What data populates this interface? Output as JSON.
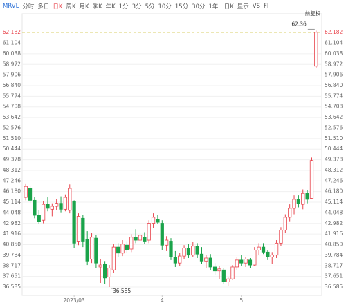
{
  "toolbar": [
    "MRVL",
    "分时",
    "多日",
    "日K",
    "周K",
    "月K",
    "季K",
    "年K",
    "1分",
    "3分",
    "5分",
    "10分",
    "15分",
    "30分",
    "1年 : 日K",
    "显示",
    "VS",
    "FI"
  ],
  "chart_data": {
    "type": "candlestick",
    "adjust_label": "前复权",
    "up_color": "#e8434b",
    "down_color": "#1aa34a",
    "ylim": [
      36.585,
      62.182
    ],
    "yticks": [
      62.182,
      61.104,
      60.038,
      58.972,
      57.906,
      {
        "value": 56.84,
        "label": "56.840"
      },
      55.774,
      54.708,
      53.642,
      52.576,
      {
        "value": 51.51,
        "label": "51.510"
      },
      50.444,
      49.378,
      48.312,
      47.246,
      {
        "value": 46.18,
        "label": "46.180"
      },
      45.114,
      44.048,
      42.982,
      41.916,
      {
        "value": 40.85,
        "label": "40.850"
      },
      39.784,
      38.717,
      37.651,
      36.585
    ],
    "categories": [
      null,
      null,
      null,
      null,
      null,
      null,
      null,
      null,
      null,
      null,
      null,
      "2023/03",
      null,
      null,
      null,
      null,
      null,
      null,
      null,
      null,
      null,
      null,
      null,
      null,
      null,
      null,
      null,
      null,
      null,
      null,
      null,
      "4",
      null,
      null,
      null,
      null,
      null,
      null,
      null,
      null,
      null,
      null,
      null,
      null,
      null,
      null,
      null,
      null,
      null,
      "5",
      null,
      null,
      null,
      null,
      null,
      null,
      null,
      null,
      null,
      null,
      null,
      null,
      null,
      null,
      null,
      null,
      null
    ],
    "open": [
      45.6,
      46.5,
      45.3,
      43.8,
      43.3,
      44.9,
      44.4,
      44.7,
      45.0,
      44.4,
      44.3,
      45.2,
      41.2,
      43.5,
      41.4,
      39.4,
      41.5,
      38.6,
      38.9,
      37.6,
      38.3,
      40.6,
      40.0,
      40.8,
      40.4,
      41.6,
      41.3,
      41.6,
      41.3,
      43.0,
      43.4,
      43.0,
      40.8,
      41.2,
      39.6,
      39.0,
      39.7,
      40.5,
      39.8,
      40.7,
      39.9,
      39.2,
      39.5,
      38.6,
      38.2,
      38.3,
      37.1,
      37.4,
      38.6,
      39.3,
      39.0,
      39.3,
      38.8,
      40.3,
      40.6,
      40.1,
      39.6,
      39.8,
      41.0,
      42.3,
      43.6,
      44.5,
      45.4,
      44.9,
      46.0,
      45.5,
      58.8
    ],
    "high": [
      47.0,
      46.8,
      45.6,
      44.3,
      45.2,
      45.6,
      45.0,
      45.4,
      45.7,
      45.9,
      46.9,
      45.3,
      44.0,
      43.8,
      42.2,
      42.0,
      41.8,
      39.4,
      39.2,
      38.8,
      40.9,
      41.0,
      41.3,
      41.2,
      41.9,
      42.4,
      42.0,
      42.1,
      43.3,
      44.0,
      43.8,
      43.3,
      41.7,
      41.5,
      40.2,
      40.0,
      40.8,
      40.9,
      41.1,
      41.0,
      40.6,
      39.8,
      39.9,
      39.0,
      38.7,
      38.5,
      37.6,
      38.8,
      39.6,
      39.8,
      39.6,
      39.5,
      40.6,
      41.0,
      41.0,
      40.3,
      40.1,
      41.3,
      42.6,
      43.9,
      44.9,
      45.8,
      45.8,
      46.4,
      46.3,
      49.6,
      62.36
    ],
    "low": [
      45.3,
      45.0,
      43.5,
      42.9,
      43.0,
      44.2,
      43.7,
      44.3,
      44.1,
      44.2,
      44.0,
      40.5,
      40.8,
      40.6,
      38.8,
      39.0,
      38.5,
      37.0,
      36.9,
      36.585,
      38.0,
      39.6,
      39.7,
      40.0,
      40.1,
      41.0,
      40.7,
      40.9,
      41.0,
      42.5,
      42.9,
      40.3,
      40.2,
      39.3,
      38.6,
      38.7,
      39.4,
      39.5,
      39.6,
      39.5,
      38.9,
      38.5,
      38.3,
      37.8,
      37.4,
      36.9,
      36.7,
      37.3,
      38.3,
      38.7,
      38.6,
      38.5,
      38.7,
      39.8,
      39.9,
      39.3,
      38.9,
      39.5,
      40.7,
      42.0,
      43.2,
      43.9,
      44.6,
      44.4,
      45.0,
      45.4,
      58.6
    ],
    "close": [
      46.7,
      45.3,
      43.8,
      43.2,
      44.9,
      44.5,
      44.7,
      45.0,
      44.4,
      45.6,
      46.5,
      41.0,
      43.7,
      41.2,
      39.2,
      41.6,
      39.0,
      38.8,
      37.5,
      38.5,
      40.6,
      40.0,
      40.9,
      40.3,
      41.6,
      41.3,
      41.8,
      41.2,
      43.0,
      43.6,
      43.1,
      40.8,
      41.3,
      39.6,
      39.0,
      39.7,
      40.5,
      39.8,
      40.7,
      39.9,
      39.2,
      39.5,
      38.6,
      38.2,
      38.4,
      37.1,
      37.4,
      38.6,
      39.3,
      39.0,
      39.4,
      38.8,
      40.3,
      40.6,
      40.1,
      39.6,
      39.8,
      41.0,
      42.3,
      43.6,
      44.5,
      45.4,
      45.0,
      46.0,
      45.4,
      49.3,
      62.2
    ]
  }
}
